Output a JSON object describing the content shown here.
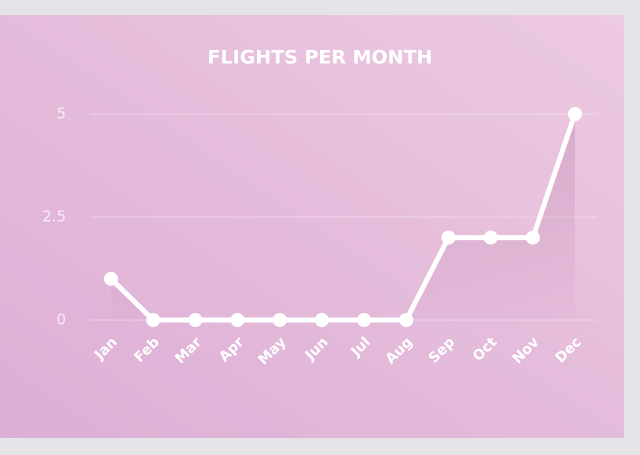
{
  "chart_data": {
    "type": "line",
    "title": "FLIGHTS PER MONTH",
    "categories": [
      "Jan",
      "Feb",
      "Mar",
      "Apr",
      "May",
      "Jun",
      "Jul",
      "Aug",
      "Sep",
      "Oct",
      "Nov",
      "Dec"
    ],
    "values": [
      1,
      0,
      0,
      0,
      0,
      0,
      0,
      0,
      2,
      2,
      2,
      5
    ],
    "color": "#ffffff",
    "ylim": [
      0,
      5
    ],
    "yticks": [
      0,
      2.5,
      5
    ],
    "grid": true,
    "area": true
  }
}
